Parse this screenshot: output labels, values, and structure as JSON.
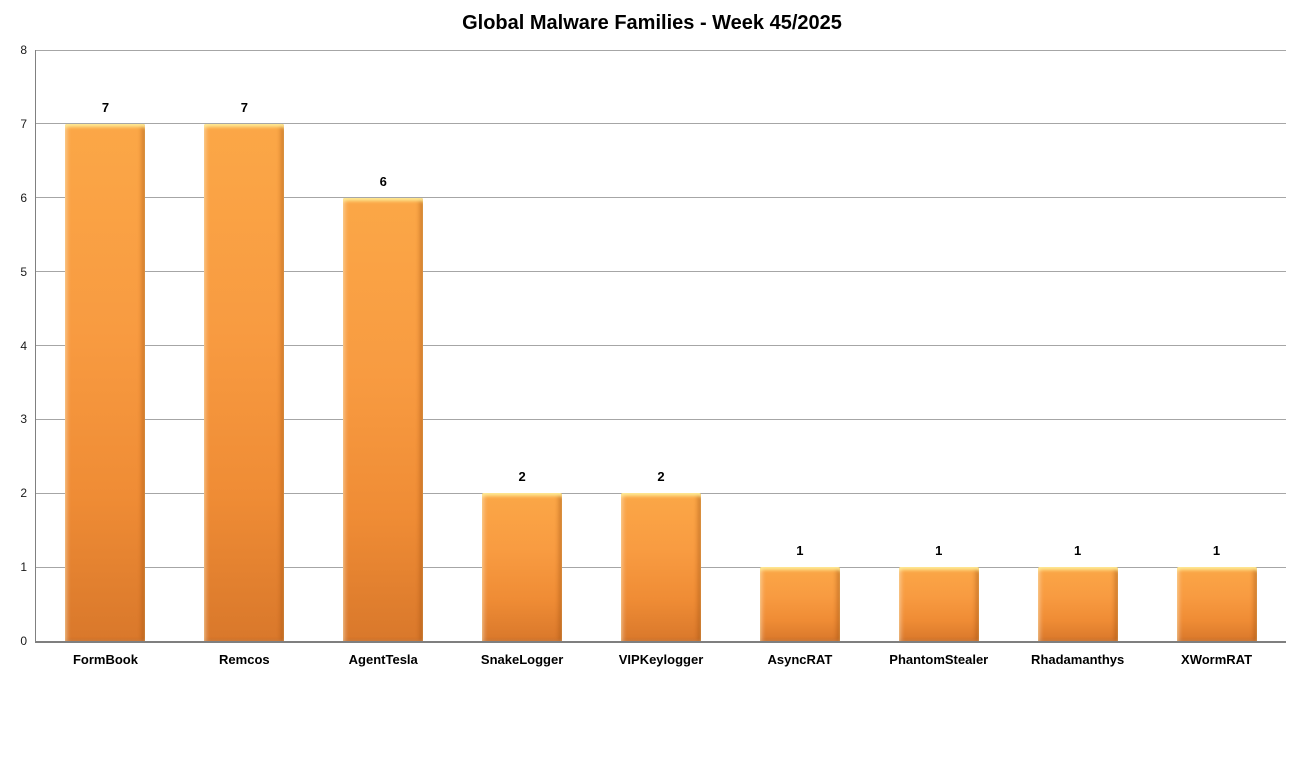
{
  "chart_data": {
    "type": "bar",
    "title": "Global Malware Families - Week 45/2025",
    "categories": [
      "FormBook",
      "Remcos",
      "AgentTesla",
      "SnakeLogger",
      "VIPKeylogger",
      "AsyncRAT",
      "PhantomStealer",
      "Rhadamanthys",
      "XWormRAT"
    ],
    "values": [
      7,
      7,
      6,
      2,
      2,
      1,
      1,
      1,
      1
    ],
    "data_labels": [
      "7",
      "7",
      "6",
      "2",
      "2",
      "1",
      "1",
      "1",
      "1"
    ],
    "xlabel": "",
    "ylabel": "",
    "ylim": [
      0,
      8
    ],
    "ytick_step": 1,
    "ytick_labels": [
      "0",
      "1",
      "2",
      "3",
      "4",
      "5",
      "6",
      "7",
      "8"
    ],
    "grid": true,
    "legend": "none",
    "colors": {
      "bar_fill_top": "#fba747",
      "bar_fill_bottom": "#d9782b",
      "gridline": "#a6a6a6",
      "axis_line": "#7f7f7f",
      "title_text": "#000000",
      "label_text": "#000000",
      "background": "#ffffff"
    }
  }
}
